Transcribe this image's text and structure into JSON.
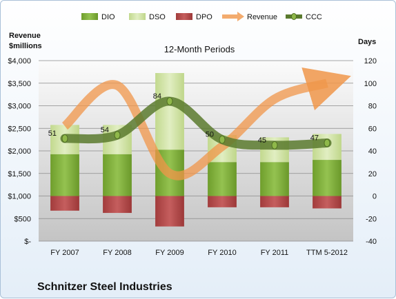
{
  "chart_data": {
    "type": "bar",
    "title": "12-Month Periods",
    "company": "Schnitzer Steel Industries",
    "categories": [
      "FY 2007",
      "FY 2008",
      "FY 2009",
      "FY 2010",
      "FY 2011",
      "TTM 5-2012"
    ],
    "left_axis": {
      "title_line1": "Revenue",
      "title_line2": "$millions",
      "range": [
        0,
        4000
      ],
      "ticks": [
        "$-",
        "$500",
        "$1,000",
        "$1,500",
        "$2,000",
        "$2,500",
        "$3,000",
        "$3,500",
        "$4,000"
      ]
    },
    "right_axis": {
      "title": "Days",
      "range": [
        -40,
        120
      ],
      "ticks": [
        "-40",
        "-20",
        "0",
        "20",
        "40",
        "60",
        "80",
        "100",
        "120"
      ]
    },
    "legend_position": "top",
    "series": [
      {
        "name": "DIO",
        "axis": "days",
        "kind": "stacked-bar",
        "color": "#7fae3a",
        "values": [
          37,
          37,
          41,
          30,
          30,
          32
        ]
      },
      {
        "name": "DSO",
        "axis": "days",
        "kind": "stacked-bar",
        "color": "#cfe3a3",
        "values": [
          26,
          26,
          68,
          24,
          22,
          23
        ]
      },
      {
        "name": "DPO",
        "axis": "days",
        "kind": "negative-bar",
        "color": "#b24a4a",
        "values": [
          -13,
          -15,
          -27,
          -10,
          -10,
          -11
        ]
      },
      {
        "name": "Revenue",
        "axis": "revenue",
        "kind": "smooth-line",
        "color": "#f0964a",
        "values": [
          2550,
          3450,
          1500,
          2100,
          3150,
          3500
        ]
      },
      {
        "name": "CCC",
        "axis": "days",
        "kind": "smooth-line",
        "color": "#5a7a2e",
        "values": [
          51,
          54,
          84,
          50,
          45,
          47
        ]
      }
    ],
    "ccc_labels": [
      "51",
      "54",
      "84",
      "50",
      "45",
      "47"
    ]
  }
}
